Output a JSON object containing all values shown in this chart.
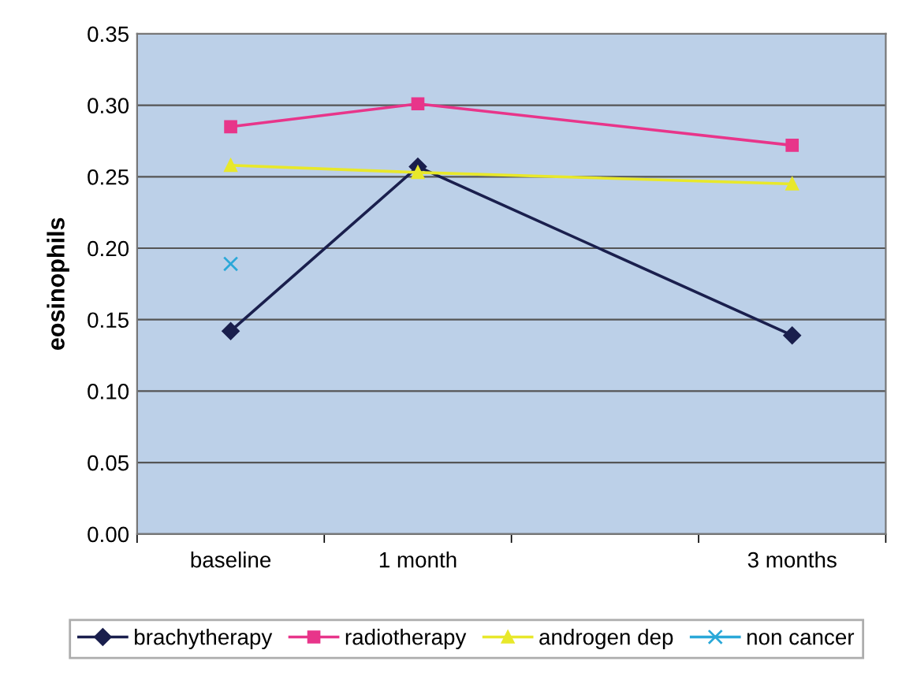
{
  "chart_data": {
    "type": "line",
    "ylabel": "eosinophils",
    "categories": [
      "baseline",
      "1 month",
      null,
      "3 months"
    ],
    "series": [
      {
        "name": "brachytherapy",
        "color": "#1a1f4d",
        "marker": "diamond",
        "values": [
          0.142,
          0.257,
          null,
          0.139
        ]
      },
      {
        "name": "radiotherapy",
        "color": "#e8358a",
        "marker": "square",
        "values": [
          0.285,
          0.301,
          null,
          0.272
        ]
      },
      {
        "name": "androgen dep",
        "color": "#e8e82a",
        "marker": "triangle",
        "values": [
          0.258,
          0.253,
          null,
          0.245
        ]
      },
      {
        "name": "non cancer",
        "color": "#2aa8d8",
        "marker": "cross",
        "values": [
          0.189,
          null,
          null,
          null
        ]
      }
    ],
    "ylim": [
      0,
      0.35
    ],
    "yticks": [
      {
        "value": 0,
        "label": "0.00"
      },
      {
        "value": 0.05,
        "label": "0.05"
      },
      {
        "value": 0.1,
        "label": "0.10"
      },
      {
        "value": 0.15,
        "label": "0.15"
      },
      {
        "value": 0.2,
        "label": "0.20"
      },
      {
        "value": 0.25,
        "label": "0.25"
      },
      {
        "value": 0.3,
        "label": "0.30"
      },
      {
        "value": 0.35,
        "label": "0.35"
      }
    ],
    "grid": "y",
    "legend": "bottom"
  }
}
